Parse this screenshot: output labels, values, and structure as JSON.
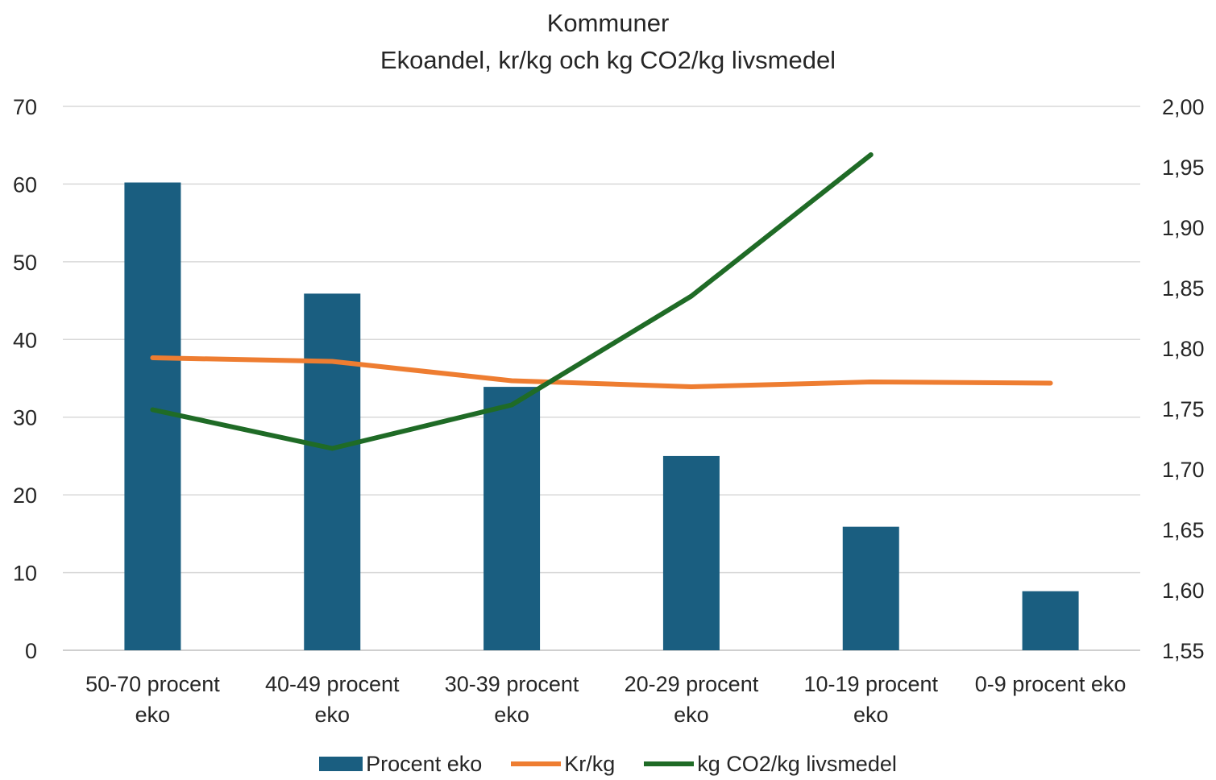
{
  "chart_data": {
    "type": "bar",
    "title": "Kommuner",
    "subtitle": "Ekoandel, kr/kg och kg CO2/kg livsmedel",
    "categories": [
      [
        "50-70 procent",
        "eko"
      ],
      [
        "40-49 procent",
        "eko"
      ],
      [
        "30-39 procent",
        "eko"
      ],
      [
        "20-29 procent",
        "eko"
      ],
      [
        "10-19 procent",
        "eko"
      ],
      [
        "0-9 procent eko"
      ]
    ],
    "y_left": {
      "min": 0,
      "max": 70,
      "step": 10,
      "ticks": [
        "0",
        "10",
        "20",
        "30",
        "40",
        "50",
        "60",
        "70"
      ]
    },
    "y_right": {
      "min": 1.55,
      "max": 2.0,
      "ticks": [
        "1,55",
        "1,60",
        "1,65",
        "1,70",
        "1,75",
        "1,80",
        "1,85",
        "1,90",
        "1,95",
        "2,00"
      ]
    },
    "grid": true,
    "legend_position": "bottom",
    "series": [
      {
        "name": "Procent eko",
        "type": "bar",
        "axis": "left",
        "color": "#1a5e80",
        "values": [
          60.2,
          45.9,
          33.9,
          25.0,
          15.9,
          7.6
        ]
      },
      {
        "name": "Kr/kg",
        "type": "line",
        "axis": "right",
        "color": "#ee7d31",
        "values": [
          1.792,
          1.789,
          1.773,
          1.768,
          1.772,
          1.771
        ]
      },
      {
        "name": "kg CO2/kg livsmedel",
        "type": "line",
        "axis": "right",
        "color": "#1f6b26",
        "values": [
          1.749,
          1.717,
          1.753,
          1.843,
          1.96,
          null
        ]
      }
    ]
  }
}
